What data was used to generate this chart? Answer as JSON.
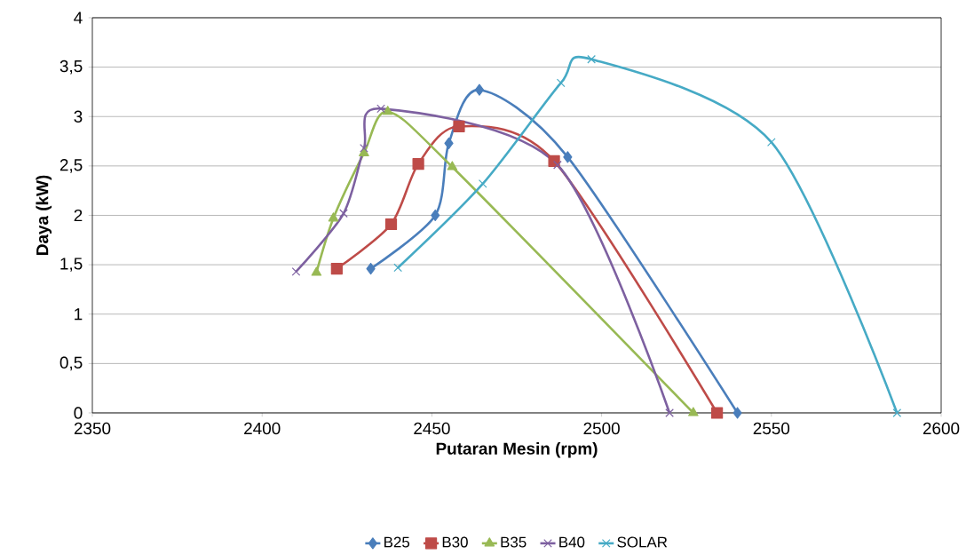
{
  "chart_data": {
    "type": "line",
    "xlabel": "Putaran Mesin (rpm)",
    "ylabel": "Daya (kW)",
    "xlim": [
      2350,
      2600
    ],
    "xticks": [
      2350,
      2400,
      2450,
      2500,
      2550,
      2600
    ],
    "ylim": [
      0,
      4
    ],
    "yticks": [
      0,
      {
        "value": 0.5,
        "label": "0,5"
      },
      1,
      {
        "value": 1.5,
        "label": "1,5"
      },
      2,
      {
        "value": 2.5,
        "label": "2,5"
      },
      3,
      {
        "value": 3.5,
        "label": "3,5"
      },
      4
    ],
    "grid": "y",
    "legend": "bottom",
    "line_style": "solid",
    "series": [
      {
        "name": "B25",
        "color": "#4a7ebb",
        "marker": "diamond",
        "x": [
          2432,
          2451,
          2455,
          2464,
          2490,
          2540
        ],
        "values": [
          1.46,
          2.0,
          2.73,
          3.27,
          2.59,
          0
        ]
      },
      {
        "name": "B30",
        "color": "#be4b48",
        "marker": "square",
        "x": [
          2422,
          2438,
          2446,
          2458,
          2486,
          2534
        ],
        "values": [
          1.46,
          1.91,
          2.52,
          2.9,
          2.55,
          0
        ]
      },
      {
        "name": "B35",
        "color": "#98b954",
        "marker": "triangle",
        "x": [
          2416,
          2421,
          2430,
          2437,
          2456,
          2527
        ],
        "values": [
          1.42,
          1.97,
          2.63,
          3.05,
          2.49,
          0
        ]
      },
      {
        "name": "B40",
        "color": "#7d60a0",
        "marker": "cross",
        "x": [
          2410,
          2424,
          2430,
          2435,
          2487,
          2520
        ],
        "values": [
          1.43,
          2.02,
          2.68,
          3.08,
          2.51,
          0
        ]
      },
      {
        "name": "SOLAR",
        "color": "#46aac5",
        "marker": "cross",
        "x": [
          2440,
          2465,
          2488,
          2497,
          2550,
          2587
        ],
        "values": [
          1.47,
          2.32,
          3.34,
          3.58,
          2.74,
          0
        ]
      }
    ]
  }
}
